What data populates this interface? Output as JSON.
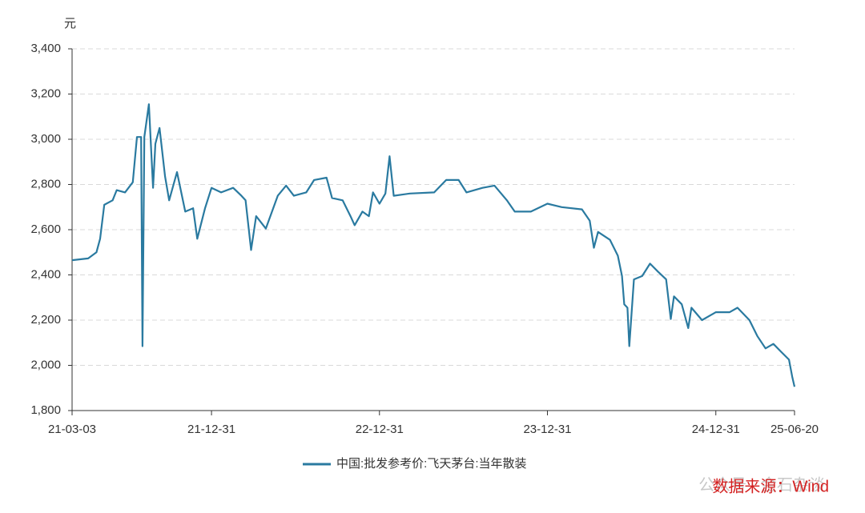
{
  "chart_data": {
    "type": "line",
    "y_unit": "元",
    "source": "数据来源：Wind",
    "watermark": "公众号 · 金石杂谈",
    "x": [
      "21-03-03",
      "21-04-07",
      "21-04-25",
      "21-05-03",
      "21-05-12",
      "21-05-30",
      "21-06-08",
      "21-06-26",
      "21-07-13",
      "21-07-22",
      "21-07-31",
      "21-08-03",
      "21-08-07",
      "21-08-17",
      "21-08-26",
      "21-08-31",
      "21-09-09",
      "21-09-21",
      "21-09-30",
      "21-10-17",
      "21-11-04",
      "21-11-21",
      "21-11-30",
      "21-12-17",
      "21-12-31",
      "22-01-21",
      "22-02-16",
      "22-03-06",
      "22-03-15",
      "22-03-27",
      "22-04-07",
      "22-04-28",
      "22-05-24",
      "22-06-11",
      "22-06-28",
      "22-07-25",
      "22-08-11",
      "22-09-07",
      "22-09-19",
      "22-10-12",
      "22-10-29",
      "22-11-07",
      "22-11-24",
      "22-12-08",
      "22-12-17",
      "22-12-31",
      "23-01-13",
      "23-01-22",
      "23-01-31",
      "23-03-07",
      "23-04-29",
      "23-05-25",
      "23-06-21",
      "23-07-08",
      "23-08-12",
      "23-09-07",
      "23-10-04",
      "23-10-21",
      "23-11-25",
      "23-12-31",
      "24-01-31",
      "24-03-15",
      "24-04-01",
      "24-04-10",
      "24-04-19",
      "24-05-15",
      "24-06-01",
      "24-06-10",
      "24-06-15",
      "24-06-22",
      "24-06-26",
      "24-07-06",
      "24-07-24",
      "24-08-10",
      "24-08-27",
      "24-09-14",
      "24-09-24",
      "24-10-01",
      "24-10-18",
      "24-11-01",
      "24-11-08",
      "24-12-01",
      "24-12-31",
      "25-01-30",
      "25-02-16",
      "25-03-14",
      "25-03-31",
      "25-04-18",
      "25-05-05",
      "25-05-22",
      "25-06-08",
      "25-06-15",
      "25-06-20"
    ],
    "series": [
      {
        "name": "中国:批发参考价:飞天茅台:当年散装",
        "color": "#2a7aa0",
        "values": [
          2465,
          2473,
          2500,
          2560,
          2710,
          2730,
          2775,
          2765,
          2810,
          3010,
          3010,
          2085,
          3010,
          3155,
          2785,
          2980,
          3050,
          2835,
          2730,
          2855,
          2680,
          2695,
          2560,
          2695,
          2785,
          2765,
          2785,
          2750,
          2730,
          2510,
          2660,
          2605,
          2750,
          2795,
          2750,
          2765,
          2820,
          2830,
          2740,
          2730,
          2660,
          2620,
          2680,
          2660,
          2765,
          2715,
          2760,
          2925,
          2750,
          2760,
          2765,
          2820,
          2820,
          2765,
          2785,
          2795,
          2730,
          2680,
          2680,
          2715,
          2700,
          2690,
          2640,
          2520,
          2590,
          2555,
          2485,
          2395,
          2270,
          2255,
          2085,
          2380,
          2395,
          2450,
          2415,
          2380,
          2205,
          2305,
          2270,
          2165,
          2255,
          2200,
          2235,
          2235,
          2255,
          2200,
          2130,
          2075,
          2095,
          2060,
          2025,
          1950,
          1905
        ]
      }
    ],
    "xlim": [
      "21-03-03",
      "25-06-20"
    ],
    "xticks": [
      "21-03-03",
      "21-12-31",
      "22-12-31",
      "23-12-31",
      "24-12-31",
      "25-06-20"
    ],
    "ylim": [
      1800,
      3400
    ],
    "yticks": [
      {
        "value": 1800,
        "label": "1,800"
      },
      {
        "value": 2000,
        "label": "2,000"
      },
      {
        "value": 2200,
        "label": "2,200"
      },
      {
        "value": 2400,
        "label": "2,400"
      },
      {
        "value": 2600,
        "label": "2,600"
      },
      {
        "value": 2800,
        "label": "2,800"
      },
      {
        "value": 3000,
        "label": "3,000"
      },
      {
        "value": 3200,
        "label": "3,200"
      },
      {
        "value": 3400,
        "label": "3,400"
      }
    ],
    "grid": true
  }
}
